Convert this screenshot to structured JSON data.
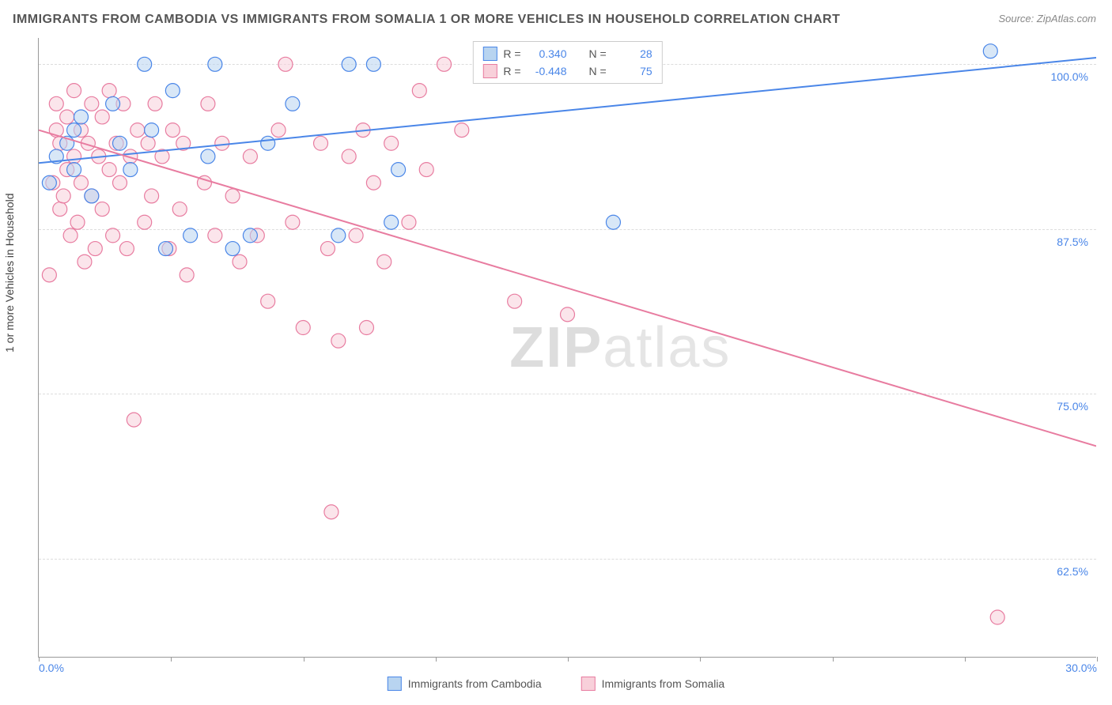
{
  "title": "IMMIGRANTS FROM CAMBODIA VS IMMIGRANTS FROM SOMALIA 1 OR MORE VEHICLES IN HOUSEHOLD CORRELATION CHART",
  "source": "Source: ZipAtlas.com",
  "watermark_bold": "ZIP",
  "watermark_thin": "atlas",
  "y_axis_label": "1 or more Vehicles in Household",
  "legend_top": {
    "series": [
      {
        "r_label": "R =",
        "r_value": "0.340",
        "n_label": "N =",
        "n_value": "28",
        "fill": "#b8d4f0",
        "stroke": "#4a86e8"
      },
      {
        "r_label": "R =",
        "r_value": "-0.448",
        "n_label": "N =",
        "n_value": "75",
        "fill": "#f8d0da",
        "stroke": "#e87ca0"
      }
    ]
  },
  "bottom_legend": [
    {
      "label": "Immigrants from Cambodia",
      "fill": "#b8d4f0",
      "stroke": "#4a86e8"
    },
    {
      "label": "Immigrants from Somalia",
      "fill": "#f8d0da",
      "stroke": "#e87ca0"
    }
  ],
  "chart": {
    "type": "scatter",
    "xlim": [
      0,
      30
    ],
    "ylim": [
      55,
      102
    ],
    "y_ticks": [
      62.5,
      75.0,
      87.5,
      100.0
    ],
    "y_tick_labels": [
      "62.5%",
      "75.0%",
      "87.5%",
      "100.0%"
    ],
    "x_ticks": [
      0,
      3.75,
      7.5,
      11.25,
      15,
      18.75,
      22.5,
      26.25,
      30
    ],
    "x_tick_labels": {
      "0": "0.0%",
      "30": "30.0%"
    },
    "grid_color": "#dddddd",
    "axis_color": "#999999",
    "tick_label_color": "#4a86e8",
    "background_color": "#ffffff",
    "marker_radius": 9,
    "marker_opacity": 0.55,
    "line_width": 2,
    "series": [
      {
        "name": "cambodia",
        "color": "#4a86e8",
        "fill": "#b8d4f0",
        "trend": {
          "x1": 0,
          "y1": 92.5,
          "x2": 30,
          "y2": 100.5
        },
        "points": [
          [
            0.3,
            91
          ],
          [
            0.5,
            93
          ],
          [
            0.8,
            94
          ],
          [
            1.0,
            92
          ],
          [
            1.0,
            95
          ],
          [
            1.2,
            96
          ],
          [
            1.5,
            90
          ],
          [
            2.1,
            97
          ],
          [
            2.3,
            94
          ],
          [
            2.6,
            92
          ],
          [
            3.0,
            100
          ],
          [
            3.2,
            95
          ],
          [
            3.6,
            86
          ],
          [
            3.8,
            98
          ],
          [
            4.3,
            87
          ],
          [
            4.8,
            93
          ],
          [
            5.0,
            100
          ],
          [
            5.5,
            86
          ],
          [
            6.0,
            87
          ],
          [
            6.5,
            94
          ],
          [
            7.2,
            97
          ],
          [
            8.5,
            87
          ],
          [
            8.8,
            100
          ],
          [
            9.5,
            100
          ],
          [
            10.0,
            88
          ],
          [
            10.2,
            92
          ],
          [
            16.3,
            88
          ],
          [
            27.0,
            101
          ]
        ]
      },
      {
        "name": "somalia",
        "color": "#e87ca0",
        "fill": "#f8d0da",
        "trend": {
          "x1": 0,
          "y1": 95.0,
          "x2": 30,
          "y2": 71.0
        },
        "points": [
          [
            0.3,
            84
          ],
          [
            0.4,
            91
          ],
          [
            0.5,
            95
          ],
          [
            0.5,
            97
          ],
          [
            0.6,
            89
          ],
          [
            0.6,
            94
          ],
          [
            0.7,
            90
          ],
          [
            0.8,
            92
          ],
          [
            0.8,
            96
          ],
          [
            0.9,
            87
          ],
          [
            1.0,
            93
          ],
          [
            1.0,
            98
          ],
          [
            1.1,
            88
          ],
          [
            1.2,
            91
          ],
          [
            1.2,
            95
          ],
          [
            1.3,
            85
          ],
          [
            1.4,
            94
          ],
          [
            1.5,
            90
          ],
          [
            1.5,
            97
          ],
          [
            1.6,
            86
          ],
          [
            1.7,
            93
          ],
          [
            1.8,
            89
          ],
          [
            1.8,
            96
          ],
          [
            2.0,
            92
          ],
          [
            2.0,
            98
          ],
          [
            2.1,
            87
          ],
          [
            2.2,
            94
          ],
          [
            2.3,
            91
          ],
          [
            2.4,
            97
          ],
          [
            2.5,
            86
          ],
          [
            2.6,
            93
          ],
          [
            2.7,
            73
          ],
          [
            2.8,
            95
          ],
          [
            3.0,
            88
          ],
          [
            3.1,
            94
          ],
          [
            3.2,
            90
          ],
          [
            3.3,
            97
          ],
          [
            3.5,
            93
          ],
          [
            3.7,
            86
          ],
          [
            3.8,
            95
          ],
          [
            4.0,
            89
          ],
          [
            4.1,
            94
          ],
          [
            4.2,
            84
          ],
          [
            4.7,
            91
          ],
          [
            4.8,
            97
          ],
          [
            5.0,
            87
          ],
          [
            5.2,
            94
          ],
          [
            5.5,
            90
          ],
          [
            5.7,
            85
          ],
          [
            6.0,
            93
          ],
          [
            6.2,
            87
          ],
          [
            6.5,
            82
          ],
          [
            6.8,
            95
          ],
          [
            7.0,
            100
          ],
          [
            7.2,
            88
          ],
          [
            7.5,
            80
          ],
          [
            8.0,
            94
          ],
          [
            8.2,
            86
          ],
          [
            8.3,
            66
          ],
          [
            8.5,
            79
          ],
          [
            8.8,
            93
          ],
          [
            9.0,
            87
          ],
          [
            9.2,
            95
          ],
          [
            9.3,
            80
          ],
          [
            9.5,
            91
          ],
          [
            9.8,
            85
          ],
          [
            10.0,
            94
          ],
          [
            10.5,
            88
          ],
          [
            10.8,
            98
          ],
          [
            11.0,
            92
          ],
          [
            11.5,
            100
          ],
          [
            12.0,
            95
          ],
          [
            13.5,
            82
          ],
          [
            15.0,
            81
          ],
          [
            27.2,
            58
          ]
        ]
      }
    ]
  }
}
